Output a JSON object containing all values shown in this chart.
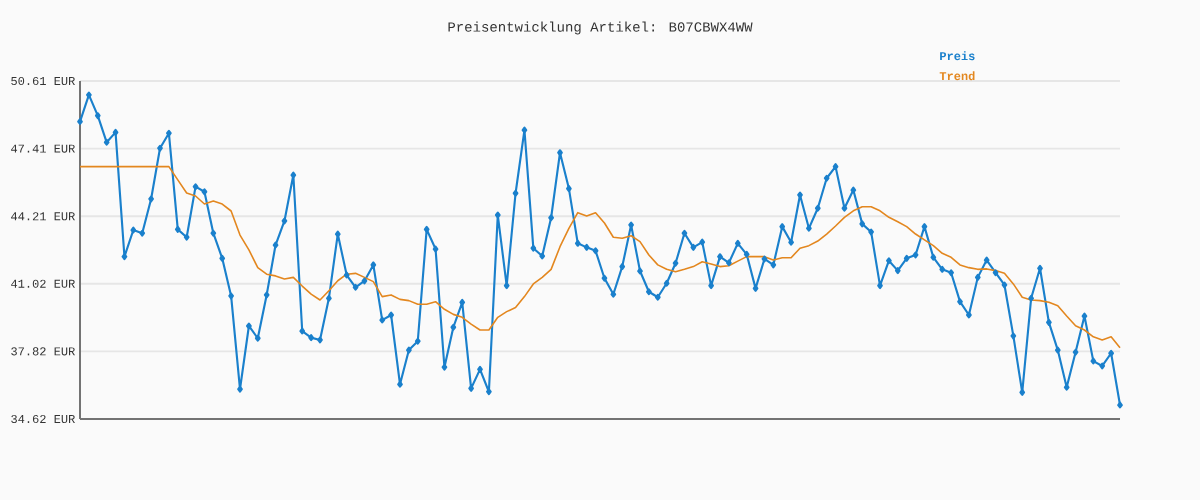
{
  "chart_data": {
    "type": "line",
    "title": "Preisentwicklung Artikel: B07CBWX4WW",
    "categories": [
      null,
      null,
      null,
      null,
      null,
      null,
      null,
      null,
      null,
      null,
      null,
      null,
      null,
      null,
      null,
      null,
      null,
      null,
      null,
      null,
      null,
      null,
      null,
      null,
      null,
      null,
      null,
      null,
      null,
      null,
      null,
      null,
      null,
      null,
      null,
      null,
      null,
      null,
      null,
      null,
      null,
      null,
      null,
      null,
      null,
      null,
      null,
      null,
      null,
      null,
      null,
      null,
      null,
      null,
      null,
      null,
      null,
      null,
      null,
      null,
      null,
      null,
      null,
      null,
      null,
      null,
      null,
      null,
      null,
      null,
      null,
      null,
      null,
      null,
      null,
      null,
      null,
      null,
      null,
      null,
      null,
      null,
      null,
      null,
      null,
      null,
      null,
      null,
      null,
      null,
      null,
      null,
      null,
      null,
      null,
      null,
      null,
      null,
      null,
      null,
      null,
      null,
      null,
      null,
      null,
      null,
      null,
      null,
      null,
      null,
      null,
      null,
      null,
      null,
      null,
      null,
      null,
      null
    ],
    "series": [
      {
        "name": "Preis",
        "color": "#1a80cc",
        "marker": "diamond",
        "values": [
          48.69,
          49.95,
          48.97,
          47.71,
          48.18,
          42.3,
          43.56,
          43.41,
          45.03,
          47.43,
          48.14,
          43.59,
          43.22,
          45.61,
          45.37,
          43.41,
          42.22,
          40.44,
          36.03,
          39.02,
          38.44,
          40.49,
          42.85,
          43.99,
          46.16,
          38.78,
          38.47,
          38.36,
          40.33,
          43.37,
          41.43,
          40.85,
          41.15,
          41.91,
          39.3,
          39.54,
          36.26,
          37.88,
          38.3,
          43.59,
          42.66,
          37.07,
          38.96,
          40.14,
          36.07,
          36.97,
          35.91,
          44.27,
          40.93,
          45.3,
          48.29,
          42.7,
          42.33,
          44.14,
          47.22,
          45.52,
          42.93,
          42.74,
          42.58,
          41.28,
          40.52,
          41.83,
          43.8,
          41.62,
          40.64,
          40.38,
          41.04,
          41.99,
          43.41,
          42.74,
          42.99,
          40.93,
          42.3,
          42.01,
          42.93,
          42.41,
          40.8,
          42.19,
          41.91,
          43.72,
          42.98,
          45.22,
          43.64,
          44.59,
          46.01,
          46.56,
          44.59,
          45.45,
          43.85,
          43.47,
          40.93,
          42.11,
          41.64,
          42.22,
          42.38,
          43.72,
          42.27,
          41.7,
          41.54,
          40.17,
          39.54,
          41.32,
          42.14,
          41.54,
          40.96,
          38.55,
          35.88,
          40.33,
          41.75,
          39.19,
          37.88,
          36.12,
          37.78,
          39.49,
          37.36,
          37.13,
          37.73,
          35.28
        ]
      },
      {
        "name": "Trend",
        "color": "#e3871f",
        "marker": "none",
        "values": [
          46.56,
          46.56,
          46.56,
          46.56,
          46.56,
          46.56,
          46.56,
          46.56,
          46.56,
          46.56,
          46.56,
          45.93,
          45.31,
          45.17,
          44.79,
          44.93,
          44.79,
          44.46,
          43.32,
          42.62,
          41.78,
          41.47,
          41.39,
          41.24,
          41.32,
          40.91,
          40.53,
          40.25,
          40.69,
          41.16,
          41.47,
          41.51,
          41.32,
          41.12,
          40.41,
          40.49,
          40.28,
          40.22,
          40.05,
          40.05,
          40.17,
          39.81,
          39.57,
          39.43,
          39.11,
          38.83,
          38.83,
          39.43,
          39.7,
          39.89,
          40.41,
          41.01,
          41.32,
          41.7,
          42.77,
          43.64,
          44.38,
          44.22,
          44.38,
          43.89,
          43.22,
          43.17,
          43.29,
          43.01,
          42.38,
          41.91,
          41.7,
          41.59,
          41.7,
          41.83,
          42.06,
          41.95,
          41.83,
          41.87,
          42.09,
          42.3,
          42.3,
          42.3,
          42.14,
          42.25,
          42.25,
          42.7,
          42.82,
          43.04,
          43.37,
          43.75,
          44.16,
          44.47,
          44.66,
          44.66,
          44.47,
          44.16,
          43.95,
          43.72,
          43.37,
          43.09,
          42.82,
          42.46,
          42.27,
          41.91,
          41.78,
          41.7,
          41.72,
          41.64,
          41.51,
          41.01,
          40.38,
          40.25,
          40.22,
          40.14,
          39.98,
          39.49,
          39.03,
          38.83,
          38.51,
          38.36,
          38.51,
          37.99
        ]
      }
    ],
    "ylim": [
      34.62,
      50.61
    ],
    "yticks": [
      {
        "value": 34.62,
        "label": "34.62 EUR"
      },
      {
        "value": 37.82,
        "label": "37.82 EUR"
      },
      {
        "value": 41.02,
        "label": "41.02 EUR"
      },
      {
        "value": 44.21,
        "label": "44.21 EUR"
      },
      {
        "value": 47.41,
        "label": "47.41 EUR"
      },
      {
        "value": 50.61,
        "label": "50.61 EUR"
      }
    ],
    "grid": "y",
    "legend": "top right",
    "line_style": "solid"
  }
}
